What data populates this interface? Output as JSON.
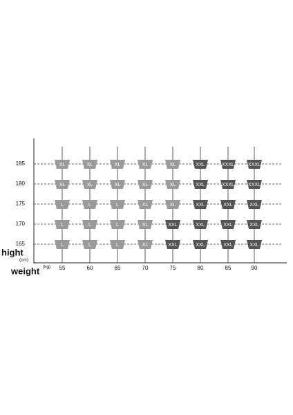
{
  "y_axis": {
    "label": "hight",
    "unit": "(cm)",
    "heights": [
      185,
      180,
      175,
      170,
      165
    ]
  },
  "x_axis": {
    "label": "weight",
    "unit": "(kg)",
    "weights": [
      55,
      60,
      65,
      70,
      75,
      80,
      85,
      90
    ]
  },
  "rows": [
    [
      {
        "size": "XL",
        "color": "#9a9a9a"
      },
      {
        "size": "XL",
        "color": "#9a9a9a"
      },
      {
        "size": "XL",
        "color": "#9a9a9a"
      },
      {
        "size": "XL",
        "color": "#9a9a9a"
      },
      {
        "size": "XL",
        "color": "#9a9a9a"
      },
      {
        "size": "XXL",
        "color": "#555555"
      },
      {
        "size": "XXXL",
        "color": "#555555"
      },
      {
        "size": "XXXL",
        "color": "#555555"
      }
    ],
    [
      {
        "size": "XL",
        "color": "#9a9a9a"
      },
      {
        "size": "XL",
        "color": "#9a9a9a"
      },
      {
        "size": "XL",
        "color": "#9a9a9a"
      },
      {
        "size": "XL",
        "color": "#9a9a9a"
      },
      {
        "size": "XL",
        "color": "#9a9a9a"
      },
      {
        "size": "XXL",
        "color": "#555555"
      },
      {
        "size": "XXXL",
        "color": "#555555"
      },
      {
        "size": "XXXL",
        "color": "#555555"
      }
    ],
    [
      {
        "size": "L",
        "color": "#9a9a9a"
      },
      {
        "size": "L",
        "color": "#9a9a9a"
      },
      {
        "size": "L",
        "color": "#9a9a9a"
      },
      {
        "size": "XL",
        "color": "#9a9a9a"
      },
      {
        "size": "XL",
        "color": "#9a9a9a"
      },
      {
        "size": "XXL",
        "color": "#555555"
      },
      {
        "size": "XXL",
        "color": "#555555"
      },
      {
        "size": "XXL",
        "color": "#555555"
      }
    ],
    [
      {
        "size": "L",
        "color": "#9a9a9a"
      },
      {
        "size": "L",
        "color": "#9a9a9a"
      },
      {
        "size": "L",
        "color": "#9a9a9a"
      },
      {
        "size": "XL",
        "color": "#9a9a9a"
      },
      {
        "size": "XXL",
        "color": "#555555"
      },
      {
        "size": "XXL",
        "color": "#555555"
      },
      {
        "size": "XXL",
        "color": "#555555"
      },
      {
        "size": "XXL",
        "color": "#555555"
      }
    ],
    [
      {
        "size": "L",
        "color": "#9a9a9a"
      },
      {
        "size": "L",
        "color": "#9a9a9a"
      },
      {
        "size": "L",
        "color": "#9a9a9a"
      },
      {
        "size": "XL",
        "color": "#9a9a9a"
      },
      {
        "size": "XXL",
        "color": "#555555"
      },
      {
        "size": "XXL",
        "color": "#555555"
      },
      {
        "size": "XXL",
        "color": "#555555"
      },
      {
        "size": "XXL",
        "color": "#555555"
      }
    ]
  ]
}
